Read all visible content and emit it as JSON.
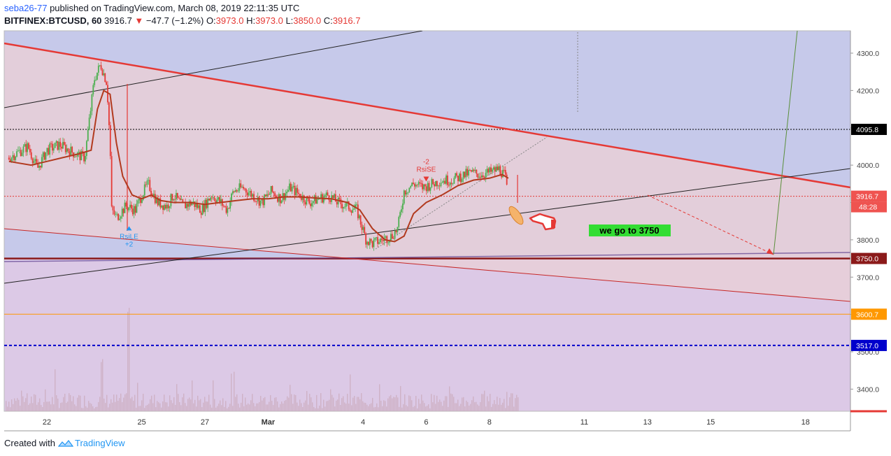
{
  "header": {
    "author": "seba26-77",
    "published_text": "published on TradingView.com, March 08, 2019 22:11:35 UTC",
    "symbol": "BITFINEX:BTCUSD, 60",
    "last": "3916.7",
    "down_arrow": "▼",
    "change": "−47.7 (−1.2%)",
    "o_label": "O:",
    "o_value": "3973.0",
    "h_label": "H:",
    "h_value": "3973.0",
    "l_label": "L:",
    "l_value": "3850.0",
    "c_label": "C:",
    "c_value": "3916.7"
  },
  "footer": {
    "created_with": "Created with",
    "brand": "TradingView"
  },
  "colors": {
    "up": "#4caf50",
    "down": "#e53935",
    "ma": "#b23a1f",
    "bg_blue": "#c6c9ea",
    "bg_pink": "#e8cfd7",
    "bg_violet": "#dcc9e6",
    "trend_red": "#e53935",
    "level_3750": "#8b1a1a",
    "level_3600": "#ff9800",
    "level_3517": "#0000cc",
    "annotation_green": "#33dd33"
  },
  "chart_data": {
    "type": "candlestick",
    "symbol": "BITFINEX:BTCUSD",
    "interval": "60",
    "ylim": [
      3310,
      4360
    ],
    "y_ticks": [
      3400,
      3500,
      3600,
      3700,
      3800,
      3900,
      4000,
      4100,
      4200,
      4300
    ],
    "y_tick_labels": [
      "3400.0",
      "3500.0",
      "3600.0",
      "3700.0",
      "3800.0",
      "3900.0",
      "4000.0",
      "4100.0",
      "4200.0",
      "4300.0"
    ],
    "x_tick_labels": [
      {
        "label": "22",
        "day": 0
      },
      {
        "label": "25",
        "day": 3
      },
      {
        "label": "27",
        "day": 5
      },
      {
        "label": "Mar",
        "day": 7
      },
      {
        "label": "4",
        "day": 10
      },
      {
        "label": "6",
        "day": 12
      },
      {
        "label": "8",
        "day": 14
      },
      {
        "label": "11",
        "day": 17
      },
      {
        "label": "13",
        "day": 19
      },
      {
        "label": "15",
        "day": 21
      },
      {
        "label": "18",
        "day": 24
      }
    ],
    "price_path": [
      [
        -1.2,
        4020
      ],
      [
        -0.6,
        4050
      ],
      [
        -0.3,
        3990
      ],
      [
        0.0,
        4040
      ],
      [
        0.4,
        4055
      ],
      [
        0.9,
        4030
      ],
      [
        1.2,
        4020
      ],
      [
        1.5,
        4230
      ],
      [
        1.7,
        4270
      ],
      [
        1.9,
        4220
      ],
      [
        2.0,
        4050
      ],
      [
        2.05,
        3880
      ],
      [
        2.2,
        3860
      ],
      [
        2.5,
        3890
      ],
      [
        2.8,
        3880
      ],
      [
        3.0,
        3920
      ],
      [
        3.2,
        3950
      ],
      [
        3.5,
        3900
      ],
      [
        3.8,
        3890
      ],
      [
        4.0,
        3920
      ],
      [
        4.3,
        3890
      ],
      [
        4.6,
        3900
      ],
      [
        4.9,
        3880
      ],
      [
        5.2,
        3920
      ],
      [
        5.5,
        3900
      ],
      [
        5.7,
        3880
      ],
      [
        5.9,
        3930
      ],
      [
        6.2,
        3940
      ],
      [
        6.5,
        3920
      ],
      [
        6.8,
        3900
      ],
      [
        7.1,
        3930
      ],
      [
        7.4,
        3910
      ],
      [
        7.7,
        3940
      ],
      [
        8.0,
        3920
      ],
      [
        8.3,
        3900
      ],
      [
        8.6,
        3910
      ],
      [
        8.9,
        3920
      ],
      [
        9.2,
        3900
      ],
      [
        9.5,
        3890
      ],
      [
        9.8,
        3880
      ],
      [
        10.1,
        3800
      ],
      [
        10.3,
        3790
      ],
      [
        10.6,
        3800
      ],
      [
        10.9,
        3810
      ],
      [
        11.1,
        3830
      ],
      [
        11.3,
        3930
      ],
      [
        11.6,
        3950
      ],
      [
        11.9,
        3940
      ],
      [
        12.2,
        3950
      ],
      [
        12.5,
        3960
      ],
      [
        12.8,
        3960
      ],
      [
        13.1,
        3970
      ],
      [
        13.4,
        3980
      ],
      [
        13.7,
        3975
      ],
      [
        14.0,
        3980
      ],
      [
        14.3,
        3990
      ],
      [
        14.5,
        3970
      ],
      [
        14.58,
        3916
      ]
    ],
    "moving_average": [
      [
        -1.2,
        4010
      ],
      [
        -0.5,
        4000
      ],
      [
        0.0,
        4010
      ],
      [
        0.5,
        4020
      ],
      [
        1.0,
        4030
      ],
      [
        1.4,
        4040
      ],
      [
        1.6,
        4150
      ],
      [
        1.8,
        4200
      ],
      [
        2.0,
        4190
      ],
      [
        2.2,
        4060
      ],
      [
        2.4,
        3970
      ],
      [
        2.7,
        3920
      ],
      [
        3.0,
        3910
      ],
      [
        3.3,
        3920
      ],
      [
        3.6,
        3905
      ],
      [
        4.0,
        3900
      ],
      [
        4.5,
        3900
      ],
      [
        5.0,
        3895
      ],
      [
        5.5,
        3900
      ],
      [
        6.0,
        3905
      ],
      [
        6.5,
        3910
      ],
      [
        7.0,
        3910
      ],
      [
        7.5,
        3915
      ],
      [
        8.0,
        3915
      ],
      [
        8.5,
        3912
      ],
      [
        9.0,
        3910
      ],
      [
        9.5,
        3900
      ],
      [
        9.9,
        3880
      ],
      [
        10.3,
        3830
      ],
      [
        10.7,
        3800
      ],
      [
        11.0,
        3795
      ],
      [
        11.3,
        3810
      ],
      [
        11.6,
        3870
      ],
      [
        12.0,
        3900
      ],
      [
        12.5,
        3920
      ],
      [
        13.0,
        3945
      ],
      [
        13.5,
        3960
      ],
      [
        14.0,
        3965
      ],
      [
        14.4,
        3975
      ],
      [
        14.6,
        3965
      ]
    ],
    "levels": [
      {
        "label": "4095.8",
        "value": 4095.8,
        "style": "dotted",
        "color": "#000000"
      },
      {
        "label": "3916.7",
        "value": 3916.7,
        "style": "dotted",
        "color": "#e53935"
      },
      {
        "label": "3750.0",
        "value": 3750.0,
        "style": "solid",
        "color": "#8b1a1a"
      },
      {
        "label": "3600.7",
        "value": 3600.7,
        "style": "solid",
        "color": "#ff9800"
      },
      {
        "label": "3517.0",
        "value": 3517.0,
        "style": "dashed",
        "color": "#0000cc"
      }
    ],
    "countdown_label": "48:28",
    "signals": [
      {
        "label": "RsiLE",
        "sub": "+2",
        "day": 2.6,
        "price": 3825,
        "color": "#2196f3"
      },
      {
        "label": "RsiSE",
        "sub": "-2",
        "day": 12.0,
        "price": 3960,
        "color": "#e53935"
      }
    ],
    "annotation": "we go to 3750"
  }
}
